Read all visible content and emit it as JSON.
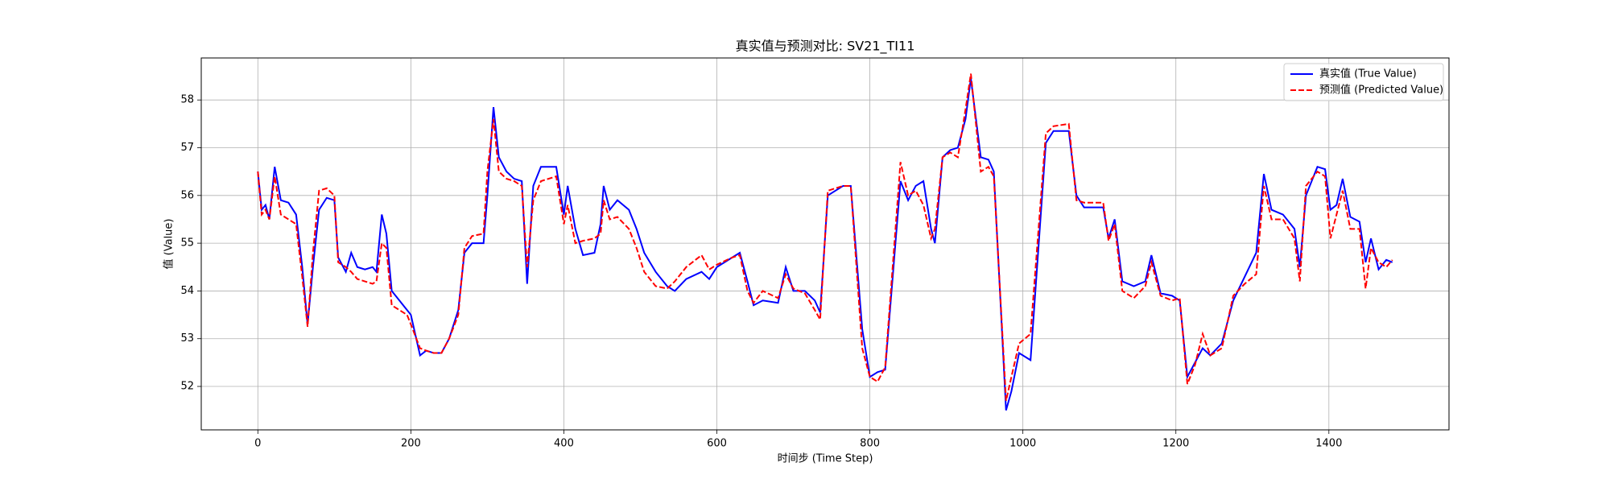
{
  "chart_data": {
    "type": "line",
    "title": "真实值与预测对比: SV21_TI11",
    "x_label": "时间步 (Time Step)",
    "y_label": "值 (Value)",
    "xlim": [
      -74,
      1557
    ],
    "ylim": [
      51.09,
      58.88
    ],
    "xticks": [
      0,
      200,
      400,
      600,
      800,
      1000,
      1200,
      1400
    ],
    "yticks": [
      52,
      53,
      54,
      55,
      56,
      57,
      58
    ],
    "grid": true,
    "legend": "upper right",
    "x": [
      0,
      5,
      10,
      15,
      22,
      30,
      40,
      50,
      58,
      65,
      72,
      80,
      90,
      100,
      105,
      115,
      122,
      130,
      140,
      150,
      155,
      162,
      168,
      175,
      185,
      195,
      200,
      212,
      220,
      230,
      240,
      250,
      262,
      270,
      280,
      295,
      300,
      308,
      315,
      325,
      335,
      345,
      352,
      360,
      370,
      390,
      400,
      405,
      415,
      425,
      440,
      448,
      452,
      460,
      470,
      485,
      495,
      505,
      520,
      535,
      545,
      560,
      580,
      590,
      600,
      620,
      630,
      640,
      648,
      660,
      680,
      690,
      700,
      715,
      728,
      735,
      745,
      765,
      775,
      790,
      800,
      810,
      820,
      840,
      850,
      860,
      870,
      880,
      885,
      895,
      905,
      915,
      925,
      932,
      945,
      955,
      962,
      978,
      985,
      995,
      1010,
      1030,
      1040,
      1060,
      1070,
      1080,
      1105,
      1112,
      1120,
      1130,
      1145,
      1160,
      1168,
      1180,
      1195,
      1205,
      1215,
      1225,
      1235,
      1245,
      1260,
      1275,
      1290,
      1305,
      1315,
      1325,
      1340,
      1355,
      1362,
      1370,
      1385,
      1395,
      1402,
      1410,
      1418,
      1428,
      1440,
      1448,
      1455,
      1465,
      1475,
      1483
    ],
    "series": [
      {
        "name": "真实值 (True Value)",
        "color": "#0000ff",
        "dash": false,
        "values": [
          56.5,
          55.7,
          55.8,
          55.5,
          56.6,
          55.9,
          55.85,
          55.6,
          54.5,
          53.3,
          54.5,
          55.7,
          55.95,
          55.9,
          54.7,
          54.4,
          54.8,
          54.5,
          54.45,
          54.5,
          54.4,
          55.6,
          55.2,
          54.0,
          53.8,
          53.6,
          53.5,
          52.65,
          52.75,
          52.7,
          52.7,
          53.0,
          53.6,
          54.8,
          55.0,
          55.0,
          56.0,
          57.85,
          56.8,
          56.5,
          56.35,
          56.3,
          54.15,
          56.2,
          56.6,
          56.6,
          55.6,
          56.2,
          55.3,
          54.75,
          54.8,
          55.4,
          56.2,
          55.7,
          55.9,
          55.7,
          55.3,
          54.8,
          54.4,
          54.1,
          54.0,
          54.25,
          54.4,
          54.25,
          54.5,
          54.7,
          54.8,
          54.2,
          53.7,
          53.8,
          53.75,
          54.5,
          54.0,
          54.0,
          53.8,
          53.55,
          56.0,
          56.2,
          56.2,
          53.2,
          52.2,
          52.3,
          52.35,
          56.3,
          55.9,
          56.2,
          56.3,
          55.3,
          55.0,
          56.8,
          56.95,
          57.0,
          57.6,
          58.45,
          56.8,
          56.75,
          56.5,
          51.5,
          51.9,
          52.7,
          52.55,
          57.1,
          57.35,
          57.35,
          56.0,
          55.75,
          55.75,
          55.1,
          55.5,
          54.2,
          54.1,
          54.2,
          54.75,
          53.95,
          53.9,
          53.8,
          52.2,
          52.5,
          52.8,
          52.65,
          52.9,
          53.8,
          54.3,
          54.8,
          56.45,
          55.7,
          55.6,
          55.3,
          54.5,
          56.0,
          56.6,
          56.55,
          55.7,
          55.8,
          56.35,
          55.55,
          55.45,
          54.6,
          55.1,
          54.45,
          54.65,
          54.6
        ]
      },
      {
        "name": "预测值 (Predicted Value)",
        "color": "#ff0000",
        "dash": true,
        "values": [
          56.5,
          55.6,
          55.7,
          55.5,
          56.4,
          55.6,
          55.5,
          55.4,
          54.3,
          53.25,
          54.8,
          56.1,
          56.15,
          56.0,
          54.6,
          54.5,
          54.4,
          54.25,
          54.2,
          54.15,
          54.2,
          55.0,
          54.9,
          53.7,
          53.6,
          53.5,
          53.3,
          52.8,
          52.75,
          52.7,
          52.7,
          53.0,
          53.5,
          54.9,
          55.15,
          55.2,
          56.5,
          57.6,
          56.5,
          56.35,
          56.3,
          56.2,
          54.5,
          55.9,
          56.3,
          56.4,
          55.4,
          55.8,
          55.0,
          55.05,
          55.1,
          55.2,
          55.9,
          55.5,
          55.55,
          55.3,
          54.9,
          54.4,
          54.1,
          54.05,
          54.2,
          54.5,
          54.75,
          54.45,
          54.55,
          54.7,
          54.75,
          54.0,
          53.75,
          54.0,
          53.85,
          54.35,
          54.05,
          53.95,
          53.6,
          53.4,
          56.1,
          56.2,
          56.2,
          52.8,
          52.2,
          52.1,
          52.4,
          56.7,
          56.0,
          56.1,
          55.8,
          55.1,
          55.3,
          56.8,
          56.9,
          56.8,
          57.8,
          58.55,
          56.5,
          56.6,
          56.4,
          51.7,
          52.2,
          52.9,
          53.1,
          57.3,
          57.45,
          57.5,
          55.9,
          55.85,
          55.85,
          55.05,
          55.4,
          54.0,
          53.85,
          54.1,
          54.6,
          53.9,
          53.8,
          53.85,
          52.05,
          52.45,
          53.1,
          52.65,
          52.8,
          53.9,
          54.15,
          54.35,
          56.2,
          55.5,
          55.5,
          55.1,
          54.2,
          56.2,
          56.5,
          56.4,
          55.1,
          55.6,
          56.1,
          55.3,
          55.3,
          54.05,
          54.9,
          54.6,
          54.5,
          54.65
        ]
      }
    ]
  }
}
